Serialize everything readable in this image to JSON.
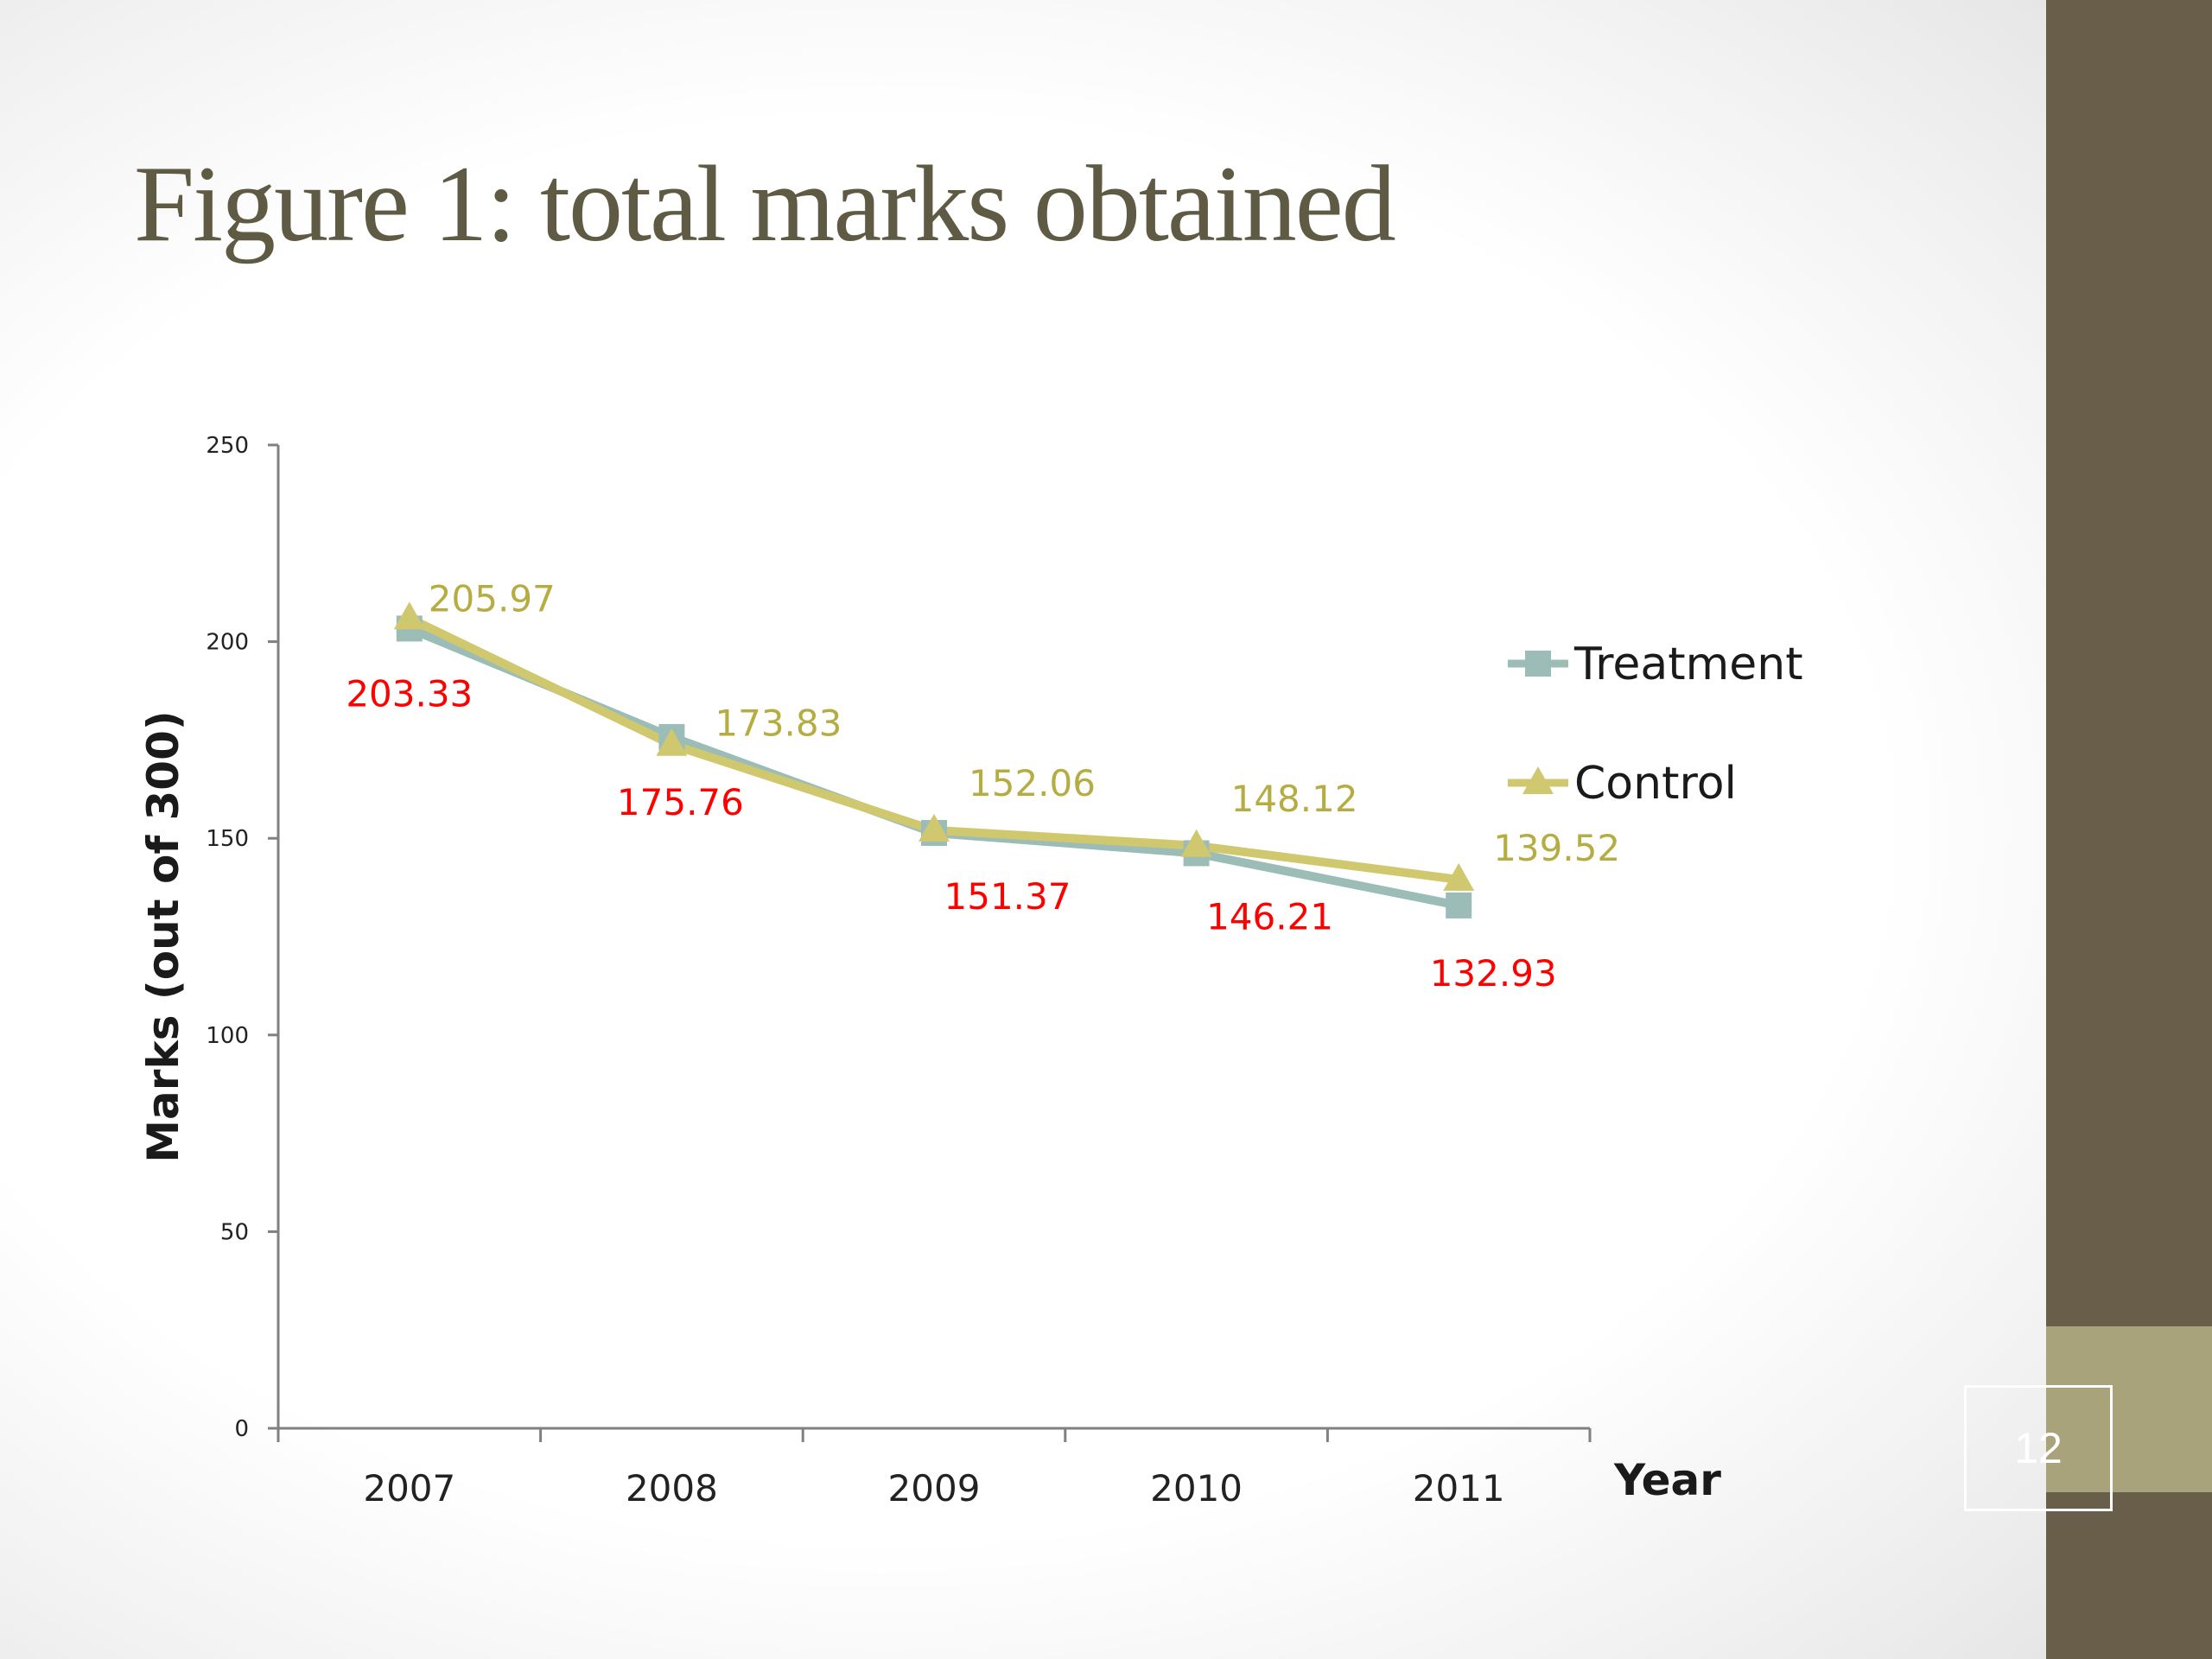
{
  "slide": {
    "title": "Figure 1: total marks obtained",
    "page_number": "12"
  },
  "colors": {
    "title": "#5f5a44",
    "side_bar": "#695e4a",
    "accent_band": "#a8a37a",
    "treatment": "#9bbcb7",
    "control": "#d0c86e",
    "treatment_label": "#ff0000",
    "control_label": "#b5ad42",
    "axis": "#808080"
  },
  "chart_data": {
    "type": "line",
    "title": "",
    "xlabel": "Year",
    "ylabel": "Marks (out of 300)",
    "categories": [
      "2007",
      "2008",
      "2009",
      "2010",
      "2011"
    ],
    "ylim": [
      0,
      250
    ],
    "yticks": [
      0,
      50,
      100,
      150,
      200,
      250
    ],
    "ytick_labels": [
      "0",
      "50",
      "100",
      "150",
      "200",
      "250"
    ],
    "grid": false,
    "legend_position": "right",
    "series": [
      {
        "name": "Treatment",
        "marker": "square",
        "values": [
          203.33,
          175.76,
          151.37,
          146.21,
          132.93
        ],
        "labels": [
          "203.33",
          "175.76",
          "151.37",
          "146.21",
          "132.93"
        ]
      },
      {
        "name": "Control",
        "marker": "triangle",
        "values": [
          205.97,
          173.83,
          152.06,
          148.12,
          139.52
        ],
        "labels": [
          "205.97",
          "173.83",
          "152.06",
          "148.12",
          "139.52"
        ]
      }
    ]
  }
}
